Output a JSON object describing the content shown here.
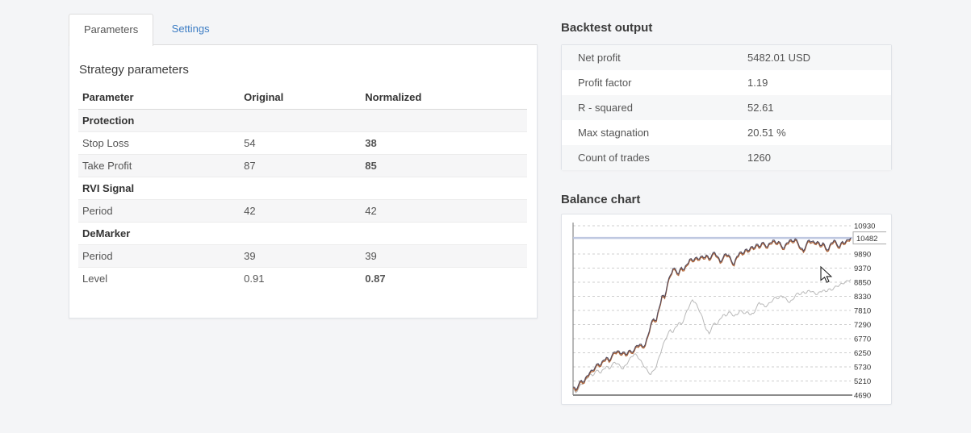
{
  "tabs": [
    {
      "label": "Parameters",
      "active": true
    },
    {
      "label": "Settings",
      "active": false
    }
  ],
  "strategy": {
    "title": "Strategy parameters",
    "columns": [
      "Parameter",
      "Original",
      "Normalized"
    ],
    "rows": [
      {
        "label": "Protection",
        "type": "group"
      },
      {
        "label": "Stop Loss",
        "original": "54",
        "normalized": "38",
        "changed": true
      },
      {
        "label": "Take Profit",
        "original": "87",
        "normalized": "85",
        "changed": true
      },
      {
        "label": "RVI Signal",
        "type": "group"
      },
      {
        "label": "Period",
        "original": "42",
        "normalized": "42",
        "changed": false
      },
      {
        "label": "DeMarker",
        "type": "group"
      },
      {
        "label": "Period",
        "original": "39",
        "normalized": "39",
        "changed": false
      },
      {
        "label": "Level",
        "original": "0.91",
        "normalized": "0.87",
        "changed": true
      }
    ]
  },
  "backtest": {
    "title": "Backtest output",
    "rows": [
      {
        "label": "Net profit",
        "value": "5482.01 USD"
      },
      {
        "label": "Profit factor",
        "value": "1.19"
      },
      {
        "label": "R - squared",
        "value": "52.61"
      },
      {
        "label": "Max stagnation",
        "value": "20.51 %"
      },
      {
        "label": "Count of trades",
        "value": "1260"
      }
    ]
  },
  "colors": {
    "changed_value": "#d0403d",
    "settings_link": "#3d7dc4",
    "balance_line": "#564c5c",
    "balance_accent": "#b4683a",
    "benchmark_line": "#b9b9b9",
    "current_value_line": "#b9c3de",
    "grid": "#cfcfcf"
  },
  "chart_data": {
    "type": "line",
    "title": "Balance chart",
    "xlabel": "",
    "ylabel": "",
    "ylim": [
      4690,
      10930
    ],
    "yticks": [
      4690,
      5210,
      5730,
      6250,
      6770,
      7290,
      7810,
      8330,
      8850,
      9370,
      9890,
      10930
    ],
    "current_value": 10482,
    "grid": "horizontal-dashed",
    "legend_position": "none",
    "series": [
      {
        "name": "normalized-balance",
        "values": [
          4980,
          4890,
          5080,
          5230,
          5180,
          5400,
          5520,
          5600,
          5720,
          5850,
          5800,
          5980,
          6080,
          5950,
          6150,
          6280,
          6320,
          6220,
          6280,
          6180,
          6320,
          6280,
          6350,
          6520,
          6560,
          6480,
          6550,
          6900,
          7300,
          7500,
          7450,
          7900,
          8350,
          8300,
          8800,
          9100,
          9350,
          9300,
          9150,
          9400,
          9320,
          9500,
          9700,
          9650,
          9750,
          9700,
          9800,
          9750,
          9850,
          9700,
          9850,
          9950,
          9800,
          9600,
          9750,
          9900,
          9850,
          9650,
          9500,
          9800,
          9950,
          9900,
          10050,
          10000,
          10150,
          10100,
          10250,
          10150,
          10300,
          10250,
          10150,
          10300,
          10400,
          10300,
          10350,
          10200,
          10100,
          10300,
          10400,
          10350,
          10450,
          10300,
          10100,
          10000,
          10250,
          10400,
          10350,
          10300,
          10350,
          10200,
          10300,
          10100,
          10050,
          10300,
          10400,
          10250,
          10150,
          10350,
          10300,
          10420,
          10482
        ]
      },
      {
        "name": "original-balance",
        "values": [
          4900,
          4780,
          4950,
          5100,
          5150,
          5300,
          5450,
          5400,
          5550,
          5600,
          5500,
          5650,
          5750,
          5650,
          5800,
          5900,
          5850,
          5750,
          5650,
          5800,
          5950,
          6100,
          6200,
          6150,
          6000,
          5850,
          5700,
          5550,
          5450,
          5600,
          5750,
          6100,
          6400,
          6700,
          6900,
          7100,
          7000,
          7200,
          7350,
          7300,
          7500,
          7800,
          8000,
          8200,
          8100,
          7900,
          7700,
          7400,
          7100,
          6950,
          7200,
          7350,
          7300,
          7500,
          7650,
          7600,
          7750,
          7700,
          7600,
          7650,
          7800,
          7750,
          7700,
          7750,
          7650,
          7700,
          7900,
          8100,
          8050,
          7950,
          8000,
          8100,
          8200,
          8300,
          8250,
          8350,
          8300,
          8200,
          8100,
          8200,
          8350,
          8450,
          8400,
          8500,
          8450,
          8550,
          8500,
          8450,
          8400,
          8500,
          8550,
          8500,
          8600,
          8550,
          8650,
          8700,
          8750,
          8800,
          8850,
          8900,
          8950
        ]
      }
    ]
  }
}
